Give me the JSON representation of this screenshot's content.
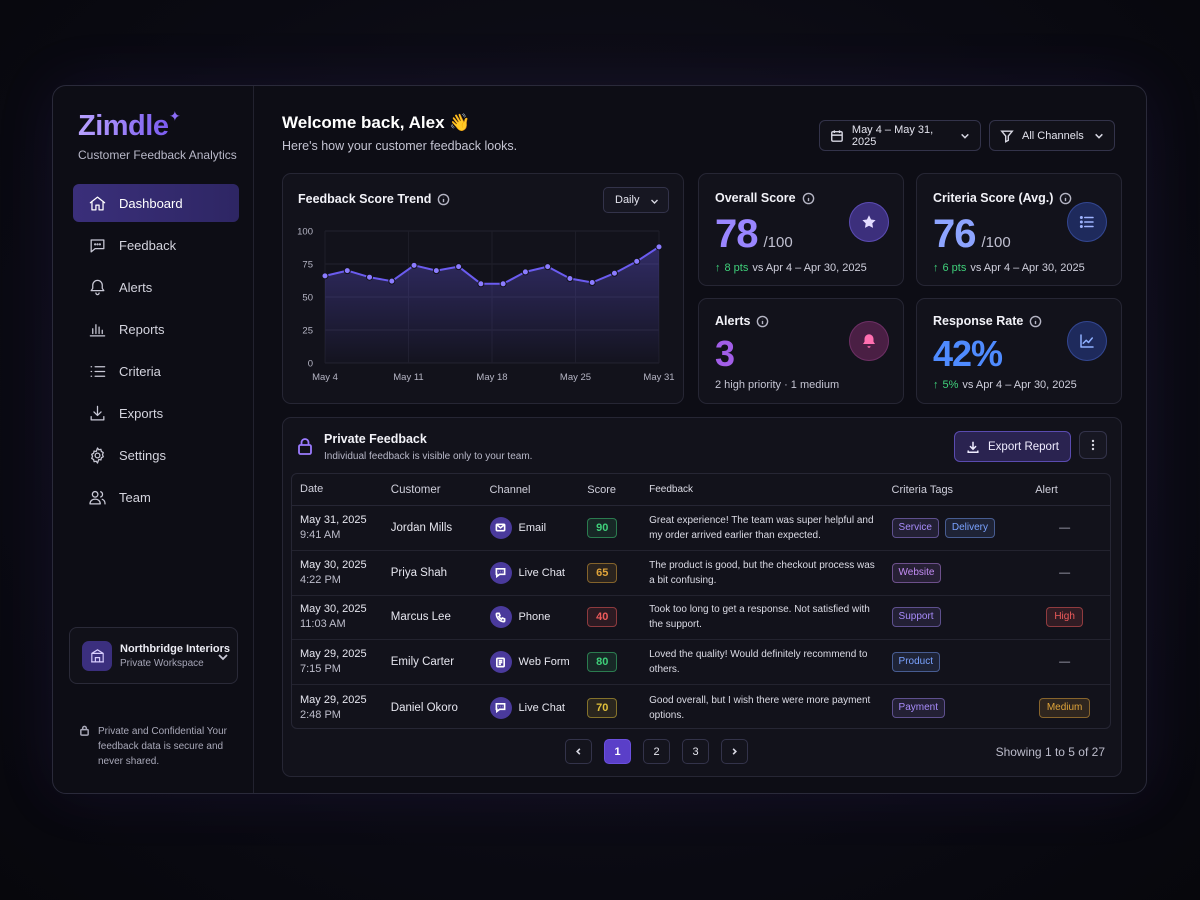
{
  "brand": {
    "name": "Zimdle",
    "spark": "✦",
    "tagline": "Customer Feedback Analytics"
  },
  "nav": [
    {
      "label": "Dashboard",
      "icon": "home-icon",
      "active": true
    },
    {
      "label": "Feedback",
      "icon": "chat-icon"
    },
    {
      "label": "Alerts",
      "icon": "bell-icon"
    },
    {
      "label": "Reports",
      "icon": "bar-chart-icon"
    },
    {
      "label": "Criteria",
      "icon": "list-icon"
    },
    {
      "label": "Exports",
      "icon": "download-icon"
    },
    {
      "label": "Settings",
      "icon": "gear-icon"
    },
    {
      "label": "Team",
      "icon": "users-icon"
    }
  ],
  "workspace": {
    "name": "Northbridge Interiors",
    "sub": "Private Workspace"
  },
  "privacy": {
    "text": "Private and Confidential Your feedback data is secure and never shared."
  },
  "header": {
    "welcome": "Welcome back, Alex 👋",
    "sub": "Here's how your customer feedback looks.",
    "date_range": "May 4 – May 31, 2025",
    "channels": "All Channels"
  },
  "trend": {
    "title": "Feedback Score Trend",
    "period": "Daily"
  },
  "chart_data": {
    "type": "area",
    "title": "Feedback Score Trend",
    "x_ticks": [
      "May 4",
      "May 11",
      "May 18",
      "May 25",
      "May 31"
    ],
    "y_ticks": [
      "100",
      "75",
      "50",
      "25",
      "0"
    ],
    "ylim": [
      0,
      100
    ],
    "values": [
      66,
      70,
      65,
      62,
      74,
      70,
      73,
      60,
      60,
      69,
      73,
      64,
      61,
      68,
      77,
      88
    ],
    "color": "#6b5cf0",
    "grid": true
  },
  "stats": {
    "overall": {
      "title": "Overall Score",
      "value": "78",
      "unit": "/100",
      "change": "8 pts",
      "period": "vs Apr 4 – Apr 30, 2025",
      "color": "#9a86ff"
    },
    "criteria": {
      "title": "Criteria Score (Avg.)",
      "value": "76",
      "unit": "/100",
      "change": "6 pts",
      "period": "vs Apr 4 – Apr 30, 2025",
      "color": "#8da4ff"
    },
    "alerts": {
      "title": "Alerts",
      "value": "3",
      "sub": "2 high priority · 1 medium",
      "color": "#a25ee8"
    },
    "response": {
      "title": "Response Rate",
      "value": "42%",
      "change": "5%",
      "period": "vs Apr 4 – Apr 30, 2025",
      "color": "#4f8bff"
    }
  },
  "feedback": {
    "title": "Private Feedback",
    "sub": "Individual feedback is visible only to your team.",
    "export_label": "Export Report",
    "columns": [
      "Date",
      "Customer",
      "Channel",
      "Score",
      "Feedback",
      "Criteria Tags",
      "Alert"
    ],
    "rows": [
      {
        "date": "May 31, 2025",
        "time": "9:41 AM",
        "customer": "Jordan Mills",
        "channel": "Email",
        "channel_icon": "mail-icon",
        "score": "90",
        "score_color": "#3fd07a",
        "text": "Great experience! The team was super helpful and my order arrived earlier than expected.",
        "tags": [
          {
            "label": "Service",
            "color": "#a78bfa"
          },
          {
            "label": "Delivery",
            "color": "#7aa2ff"
          }
        ],
        "alert": "—",
        "alert_color": ""
      },
      {
        "date": "May 30, 2025",
        "time": "4:22 PM",
        "customer": "Priya Shah",
        "channel": "Live Chat",
        "channel_icon": "chat-icon",
        "score": "65",
        "score_color": "#e0a43a",
        "text": "The product is good, but the checkout process was a bit confusing.",
        "tags": [
          {
            "label": "Website",
            "color": "#c38cf5"
          }
        ],
        "alert": "—",
        "alert_color": ""
      },
      {
        "date": "May 30, 2025",
        "time": "11:03 AM",
        "customer": "Marcus Lee",
        "channel": "Phone",
        "channel_icon": "phone-icon",
        "score": "40",
        "score_color": "#ef5b5b",
        "text": "Took too long to get a response. Not satisfied with the support.",
        "tags": [
          {
            "label": "Support",
            "color": "#a78bfa"
          }
        ],
        "alert": "High",
        "alert_color": "#ef5b5b"
      },
      {
        "date": "May 29, 2025",
        "time": "7:15 PM",
        "customer": "Emily Carter",
        "channel": "Web Form",
        "channel_icon": "form-icon",
        "score": "80",
        "score_color": "#3fd07a",
        "text": "Loved the quality! Would definitely recommend to others.",
        "tags": [
          {
            "label": "Product",
            "color": "#7aa2ff"
          }
        ],
        "alert": "—",
        "alert_color": ""
      },
      {
        "date": "May 29, 2025",
        "time": "2:48 PM",
        "customer": "Daniel Okoro",
        "channel": "Live Chat",
        "channel_icon": "chat-icon",
        "score": "70",
        "score_color": "#e0c03a",
        "text": "Good overall, but I wish there were more payment options.",
        "tags": [
          {
            "label": "Payment",
            "color": "#a78bfa"
          }
        ],
        "alert": "Medium",
        "alert_color": "#e0a43a"
      }
    ],
    "pages": [
      "1",
      "2",
      "3"
    ],
    "current_page": "1",
    "showing": "Showing 1 to 5 of 27"
  }
}
